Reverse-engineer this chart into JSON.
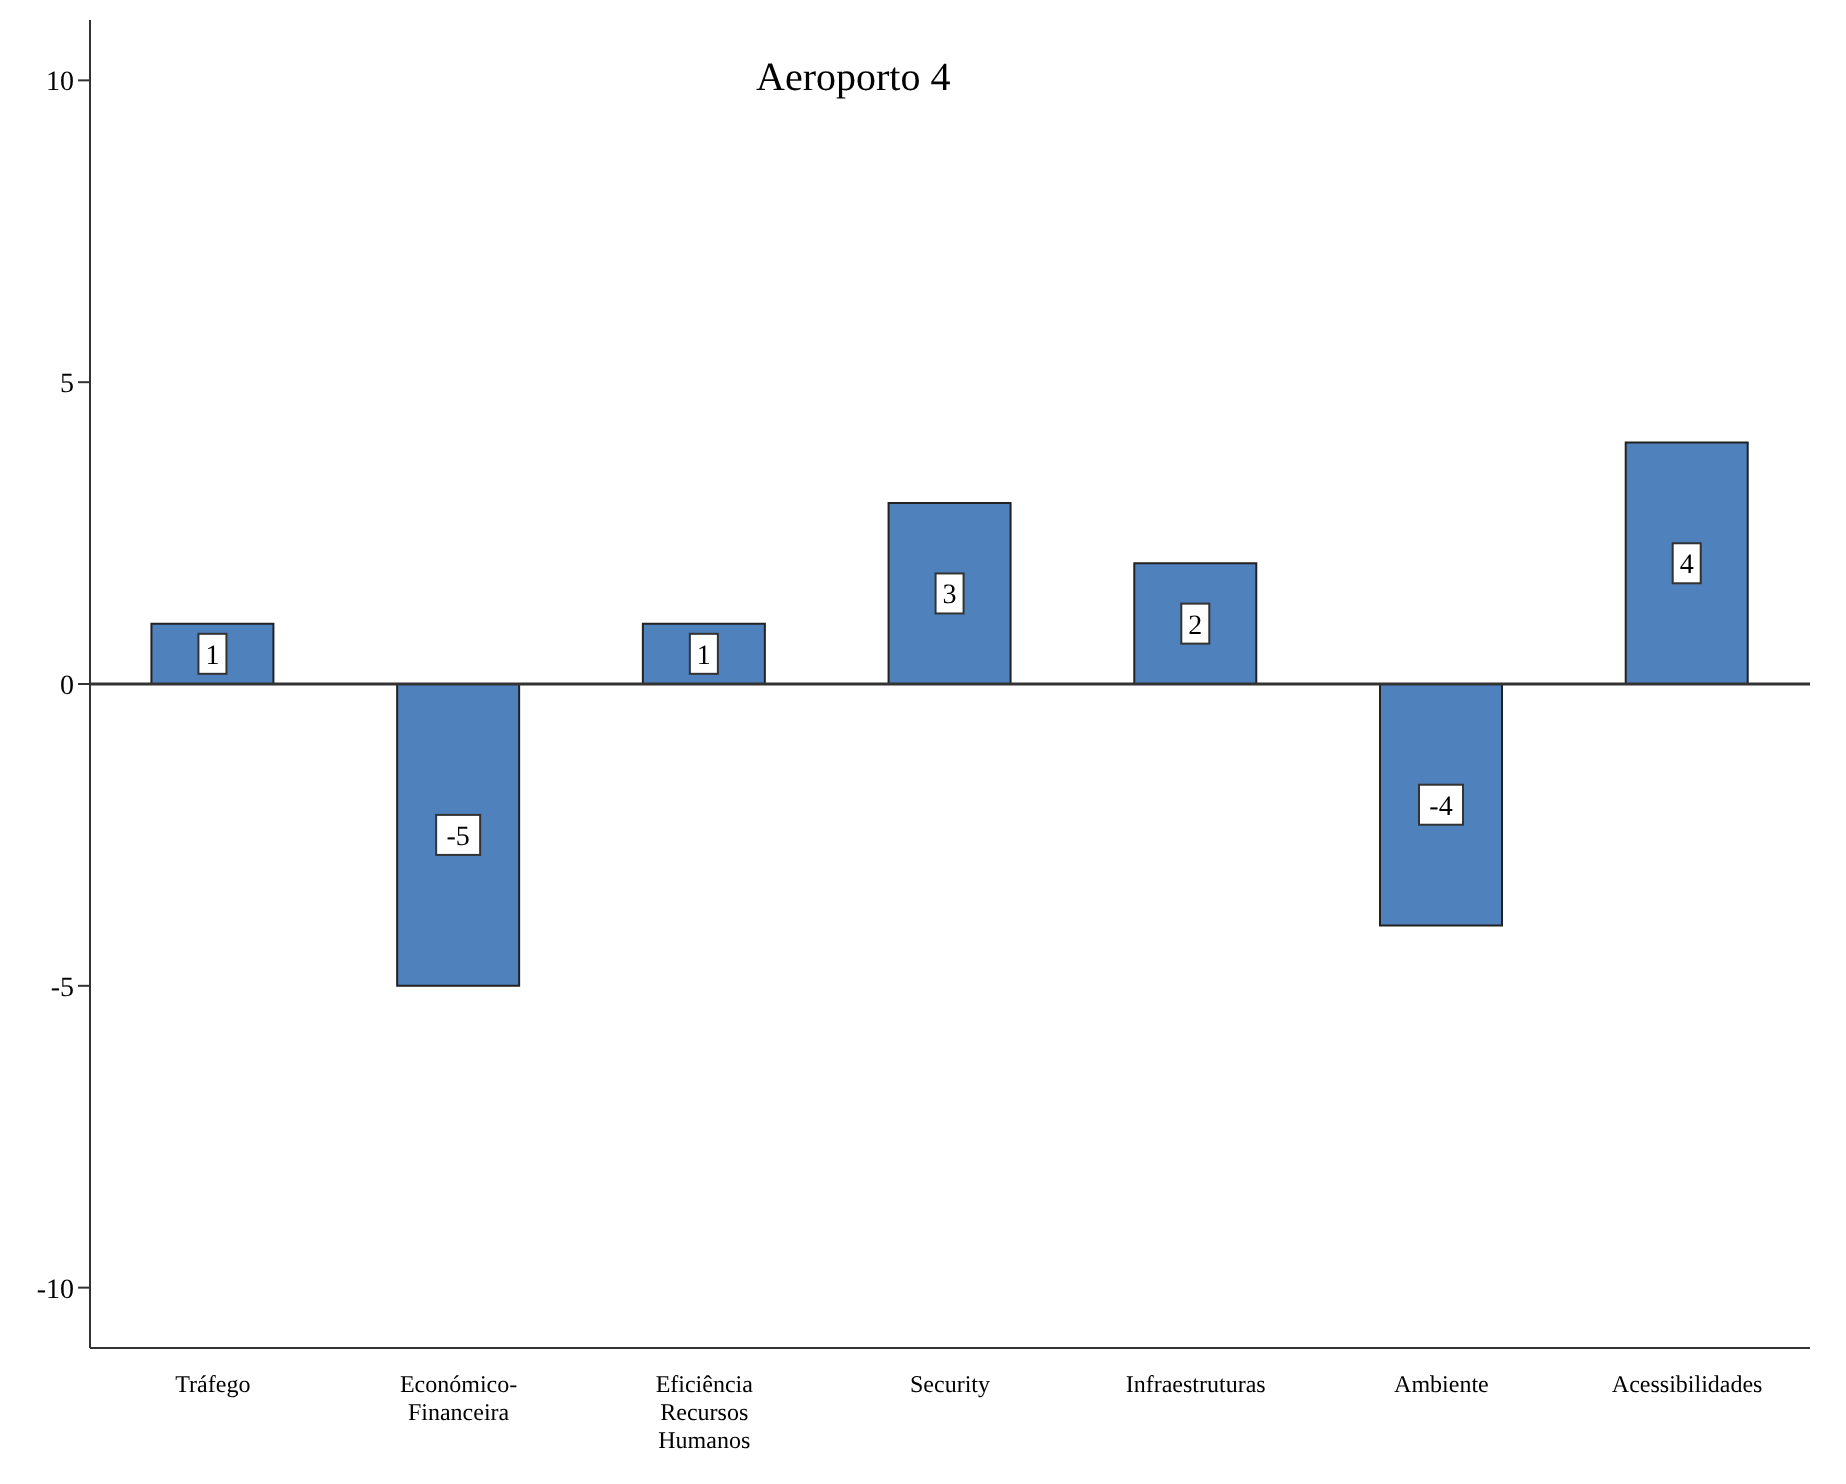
{
  "chart_data": {
    "type": "bar",
    "title": "Aeroporto 4",
    "categories": [
      "Tráfego",
      "Económico-Financeira",
      "Eficiência Recursos Humanos",
      "Security",
      "Infraestruturas",
      "Ambiente",
      "Acessibilidades"
    ],
    "values": [
      1,
      -5,
      1,
      3,
      2,
      -4,
      4
    ],
    "color": "#4f81bd",
    "ylim": [
      -11,
      11
    ],
    "yticks": [
      -10,
      -5,
      0,
      5,
      10
    ],
    "ref_lines": [
      {
        "axis": "y",
        "value": 0,
        "color": "#333333"
      }
    ],
    "data_labels": true
  }
}
